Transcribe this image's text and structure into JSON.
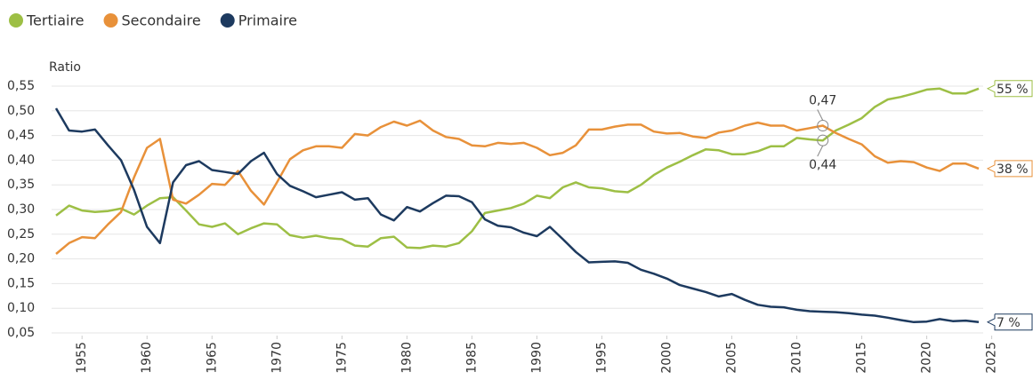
{
  "chart_data": {
    "type": "line",
    "y_label": "Ratio",
    "x": [
      1953,
      1954,
      1955,
      1956,
      1957,
      1958,
      1959,
      1960,
      1961,
      1962,
      1963,
      1964,
      1965,
      1966,
      1967,
      1968,
      1969,
      1970,
      1971,
      1972,
      1973,
      1974,
      1975,
      1976,
      1977,
      1978,
      1979,
      1980,
      1981,
      1982,
      1983,
      1984,
      1985,
      1986,
      1987,
      1988,
      1989,
      1990,
      1991,
      1992,
      1993,
      1994,
      1995,
      1996,
      1997,
      1998,
      1999,
      2000,
      2001,
      2002,
      2003,
      2004,
      2005,
      2006,
      2007,
      2008,
      2009,
      2010,
      2011,
      2012,
      2013,
      2014,
      2015,
      2016,
      2017,
      2018,
      2019,
      2020,
      2021,
      2022,
      2023,
      2024
    ],
    "series": [
      {
        "name": "Tertiaire",
        "color": "#9dbf45",
        "end_label": "55 %",
        "values": [
          0.288,
          0.308,
          0.298,
          0.295,
          0.297,
          0.302,
          0.29,
          0.308,
          0.323,
          0.325,
          0.298,
          0.27,
          0.265,
          0.272,
          0.25,
          0.262,
          0.272,
          0.27,
          0.248,
          0.243,
          0.247,
          0.242,
          0.24,
          0.227,
          0.225,
          0.242,
          0.245,
          0.223,
          0.222,
          0.227,
          0.225,
          0.232,
          0.256,
          0.293,
          0.298,
          0.303,
          0.312,
          0.328,
          0.323,
          0.345,
          0.355,
          0.345,
          0.343,
          0.337,
          0.335,
          0.35,
          0.37,
          0.385,
          0.397,
          0.41,
          0.422,
          0.42,
          0.412,
          0.412,
          0.418,
          0.428,
          0.428,
          0.445,
          0.442,
          0.44,
          0.46,
          0.472,
          0.485,
          0.508,
          0.523,
          0.528,
          0.535,
          0.543,
          0.545,
          0.535,
          0.535,
          0.545
        ]
      },
      {
        "name": "Secondaire",
        "color": "#e8913a",
        "end_label": "38 %",
        "values": [
          0.21,
          0.232,
          0.244,
          0.242,
          0.27,
          0.295,
          0.365,
          0.425,
          0.443,
          0.32,
          0.312,
          0.33,
          0.352,
          0.35,
          0.378,
          0.338,
          0.31,
          0.355,
          0.402,
          0.42,
          0.428,
          0.428,
          0.425,
          0.453,
          0.45,
          0.467,
          0.478,
          0.47,
          0.48,
          0.46,
          0.447,
          0.443,
          0.43,
          0.428,
          0.435,
          0.433,
          0.435,
          0.425,
          0.41,
          0.415,
          0.43,
          0.462,
          0.462,
          0.468,
          0.472,
          0.472,
          0.458,
          0.454,
          0.455,
          0.448,
          0.445,
          0.456,
          0.46,
          0.47,
          0.476,
          0.47,
          0.47,
          0.46,
          0.465,
          0.47,
          0.455,
          0.443,
          0.432,
          0.408,
          0.395,
          0.398,
          0.396,
          0.385,
          0.378,
          0.393,
          0.393,
          0.383
        ]
      },
      {
        "name": "Primaire",
        "color": "#1d3a5f",
        "end_label": "7 %",
        "values": [
          0.505,
          0.46,
          0.458,
          0.462,
          0.43,
          0.4,
          0.34,
          0.265,
          0.232,
          0.355,
          0.39,
          0.398,
          0.38,
          0.376,
          0.372,
          0.398,
          0.415,
          0.372,
          0.348,
          0.337,
          0.325,
          0.33,
          0.335,
          0.32,
          0.323,
          0.29,
          0.278,
          0.305,
          0.296,
          0.313,
          0.328,
          0.327,
          0.315,
          0.28,
          0.267,
          0.264,
          0.253,
          0.246,
          0.265,
          0.24,
          0.214,
          0.193,
          0.194,
          0.195,
          0.192,
          0.178,
          0.17,
          0.16,
          0.147,
          0.14,
          0.133,
          0.124,
          0.129,
          0.117,
          0.107,
          0.103,
          0.102,
          0.097,
          0.094,
          0.093,
          0.092,
          0.09,
          0.087,
          0.085,
          0.081,
          0.076,
          0.072,
          0.073,
          0.078,
          0.074,
          0.075,
          0.072
        ]
      }
    ],
    "annotations": [
      {
        "x": 2012,
        "y": 0.47,
        "label": "0,47"
      },
      {
        "x": 2012,
        "y": 0.44,
        "label": "0,44"
      }
    ],
    "xlim": [
      1953,
      2024
    ],
    "xticks": [
      1955,
      1960,
      1965,
      1970,
      1975,
      1980,
      1985,
      1990,
      1995,
      2000,
      2005,
      2010,
      2015,
      2020,
      2025
    ],
    "ylim": [
      0.05,
      0.55
    ],
    "yticks": [
      {
        "value": 0.05,
        "label": "0,05"
      },
      {
        "value": 0.1,
        "label": "0,10"
      },
      {
        "value": 0.15,
        "label": "0,15"
      },
      {
        "value": 0.2,
        "label": "0,20"
      },
      {
        "value": 0.25,
        "label": "0,25"
      },
      {
        "value": 0.3,
        "label": "0,30"
      },
      {
        "value": 0.35,
        "label": "0,35"
      },
      {
        "value": 0.4,
        "label": "0,40"
      },
      {
        "value": 0.45,
        "label": "0,45"
      },
      {
        "value": 0.5,
        "label": "0,50"
      },
      {
        "value": 0.55,
        "label": "0,55"
      }
    ],
    "grid": true,
    "legend": "top-left"
  }
}
